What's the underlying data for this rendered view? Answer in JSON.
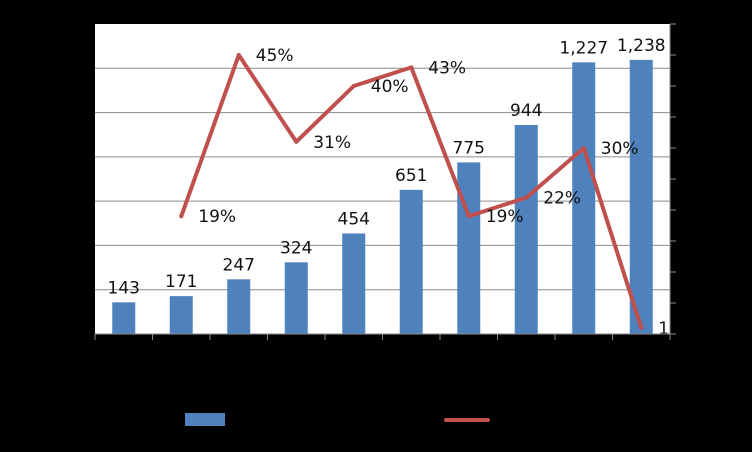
{
  "chart_data": {
    "type": "bar",
    "title": "",
    "xlabel": "",
    "ylabel": "",
    "y2label": "",
    "categories": [
      "",
      "",
      "",
      "",
      "",
      "",
      "",
      "",
      "",
      ""
    ],
    "ylim": [
      0,
      1400
    ],
    "y2lim": [
      0,
      0.5
    ],
    "grid": true,
    "legend_position": "bottom",
    "series": [
      {
        "type": "bar",
        "axis": "primary",
        "color": "#4F81BD",
        "values": [
          143,
          171,
          247,
          324,
          454,
          651,
          775,
          944,
          1227,
          1238
        ],
        "labels": [
          "143",
          "171",
          "247",
          "324",
          "454",
          "651",
          "775",
          "944",
          "1,227",
          "1,238"
        ]
      },
      {
        "type": "line",
        "axis": "secondary",
        "color": "#C0504D",
        "values": [
          null,
          0.19,
          0.45,
          0.31,
          0.4,
          0.43,
          0.19,
          0.22,
          0.3,
          0.01
        ],
        "labels": [
          "",
          "19%",
          "45%",
          "31%",
          "40%",
          "43%",
          "19%",
          "22%",
          "30%",
          "1"
        ]
      }
    ]
  }
}
